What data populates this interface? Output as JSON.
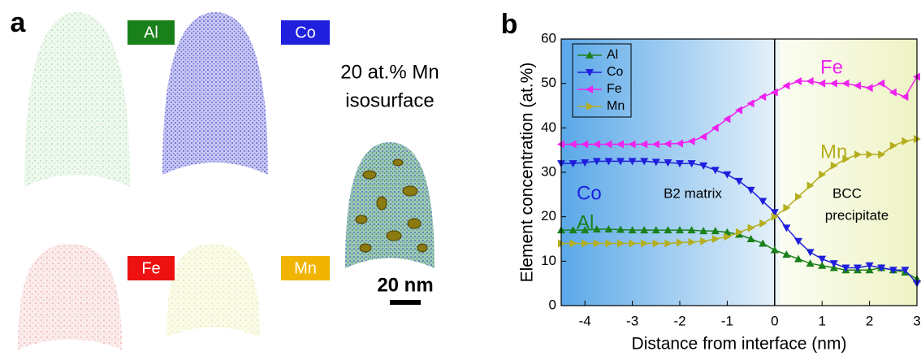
{
  "panel_a": {
    "label": "a",
    "elements": [
      "Al",
      "Co",
      "Fe",
      "Mn"
    ],
    "isosurface_label": [
      "20 at.% Mn",
      "isosurface"
    ],
    "scale_bar": "20 nm"
  },
  "panel_b": {
    "label": "b"
  },
  "chart_data": {
    "type": "line",
    "xlabel": "Distance from interface (nm)",
    "ylabel": "Element concentration (at.%)",
    "x": [
      -4.5,
      -4.25,
      -4,
      -3.75,
      -3.5,
      -3.25,
      -3,
      -2.75,
      -2.5,
      -2.25,
      -2,
      -1.75,
      -1.5,
      -1.25,
      -1,
      -0.75,
      -0.5,
      -0.25,
      0,
      0.25,
      0.5,
      0.75,
      1,
      1.25,
      1.5,
      1.75,
      2,
      2.25,
      2.5,
      2.75,
      3
    ],
    "series": [
      {
        "name": "Al",
        "color": "#1a801a",
        "marker": "up",
        "values": [
          17,
          17,
          17,
          17.2,
          17.2,
          17.1,
          17,
          17,
          17,
          17,
          17,
          17,
          16.8,
          16.8,
          16.5,
          16,
          15,
          14,
          12.5,
          11.5,
          10.5,
          9.5,
          9,
          8.5,
          8,
          8,
          8,
          8.5,
          8,
          7.5,
          6
        ]
      },
      {
        "name": "Co",
        "color": "#1f1fdd",
        "marker": "down",
        "values": [
          32,
          32,
          32.2,
          32.5,
          32.5,
          32.5,
          32.5,
          32.5,
          32.3,
          32.2,
          32,
          32,
          31.5,
          30.5,
          29.5,
          28,
          26,
          23.5,
          21,
          17.5,
          14.5,
          12,
          10.5,
          9.5,
          8.5,
          8.5,
          9,
          8.5,
          8,
          8,
          5
        ]
      },
      {
        "name": "Fe",
        "color": "#ee22ee",
        "marker": "left",
        "values": [
          36.3,
          36.3,
          36.3,
          36.3,
          36.3,
          36.3,
          36.3,
          36.3,
          36.3,
          36.4,
          36.5,
          37,
          38,
          40,
          42,
          44,
          45.5,
          47,
          48,
          49.5,
          50.5,
          50.5,
          50,
          50,
          50,
          49.5,
          49,
          50,
          48,
          47,
          51.5
        ]
      },
      {
        "name": "Mn",
        "color": "#b5ae1e",
        "marker": "right",
        "values": [
          14,
          14,
          14,
          14,
          14,
          14,
          14,
          14,
          14,
          14,
          14.2,
          14.3,
          14.5,
          15,
          15.5,
          16.5,
          17.5,
          18.5,
          20,
          22,
          24.5,
          27,
          29.5,
          31.5,
          33,
          34,
          34,
          34,
          36,
          37,
          37.5
        ]
      }
    ],
    "xlim": [
      -4.5,
      3
    ],
    "xticks": [
      -4,
      -3,
      -2,
      -1,
      0,
      1,
      2,
      3
    ],
    "ylim": [
      0,
      60
    ],
    "yticks": [
      0,
      10,
      20,
      30,
      40,
      50,
      60
    ],
    "vline": 0,
    "legend": "upper left",
    "annotations": [
      "Fe",
      "Mn",
      "Co",
      "Al",
      "B2 matrix",
      "BCC",
      "precipitate"
    ]
  }
}
